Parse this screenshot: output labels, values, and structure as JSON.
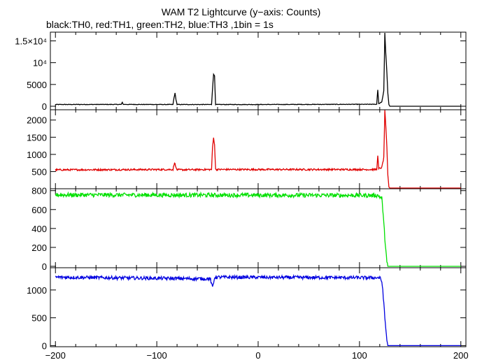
{
  "title": "WAM T2 Lightcurve (y−axis: Counts)",
  "subtitle": "black:TH0, red:TH1, green:TH2, blue:TH3 ,1bin = 1s",
  "chart_data": {
    "type": "line",
    "x_range": [
      -205,
      205
    ],
    "x_ticks": [
      -200,
      -100,
      0,
      100,
      200
    ],
    "x_tick_labels": [
      "−200",
      "−100",
      "0",
      "100",
      "200"
    ],
    "x_minor_step": 20,
    "panels": [
      {
        "name": "TH0",
        "color": "#000000",
        "ylim": [
          -800,
          17000
        ],
        "y_ticks": [
          0,
          5000,
          10000,
          15000
        ],
        "y_tick_labels": [
          "0",
          "5000",
          "10⁴",
          "1.5×10⁴"
        ],
        "series": {
          "baseline": 400,
          "noise": 60,
          "points": [
            [
              -200,
              400
            ],
            [
              -135,
              420
            ],
            [
              -134,
              900
            ],
            [
              -133,
              420
            ],
            [
              -84,
              400
            ],
            [
              -83,
              2000
            ],
            [
              -82,
              3000
            ],
            [
              -81,
              1500
            ],
            [
              -80,
              400
            ],
            [
              -46,
              400
            ],
            [
              -45,
              4000
            ],
            [
              -44,
              7300
            ],
            [
              -43,
              7000
            ],
            [
              -42,
              400
            ],
            [
              -5,
              400
            ],
            [
              117,
              450
            ],
            [
              118,
              3800
            ],
            [
              119,
              600
            ],
            [
              122,
              1000
            ],
            [
              124,
              3500
            ],
            [
              125,
              16800
            ],
            [
              126,
              12000
            ],
            [
              127,
              7800
            ],
            [
              128,
              3000
            ],
            [
              129,
              400
            ],
            [
              130,
              0
            ],
            [
              200,
              0
            ]
          ]
        }
      },
      {
        "name": "TH1",
        "color": "#e00000",
        "ylim": [
          0,
          2300
        ],
        "y_ticks": [
          500,
          1000,
          1500,
          2000
        ],
        "y_tick_labels": [
          "500",
          "1000",
          "1500",
          "2000"
        ],
        "series": {
          "baseline": 550,
          "noise": 25,
          "points": [
            [
              -200,
              550
            ],
            [
              -84,
              560
            ],
            [
              -83,
              700
            ],
            [
              -82,
              760
            ],
            [
              -81,
              600
            ],
            [
              -80,
              550
            ],
            [
              -46,
              560
            ],
            [
              -45,
              1200
            ],
            [
              -44,
              1480
            ],
            [
              -43,
              1300
            ],
            [
              -42,
              560
            ],
            [
              117,
              560
            ],
            [
              118,
              950
            ],
            [
              119,
              580
            ],
            [
              122,
              620
            ],
            [
              124,
              900
            ],
            [
              125,
              2300
            ],
            [
              126,
              1800
            ],
            [
              127,
              1200
            ],
            [
              128,
              400
            ],
            [
              129,
              50
            ],
            [
              130,
              20
            ],
            [
              200,
              20
            ]
          ]
        }
      },
      {
        "name": "TH2",
        "color": "#00e000",
        "ylim": [
          -15,
          820
        ],
        "y_ticks": [
          0,
          200,
          400,
          600,
          800
        ],
        "y_tick_labels": [
          "0",
          "200",
          "400",
          "600",
          "800"
        ],
        "series": {
          "baseline": 755,
          "noise": 22,
          "points": [
            [
              -200,
              755
            ],
            [
              118,
              750
            ],
            [
              120,
              735
            ],
            [
              122,
              720
            ],
            [
              123,
              600
            ],
            [
              124,
              450
            ],
            [
              125,
              300
            ],
            [
              126,
              180
            ],
            [
              127,
              40
            ],
            [
              128,
              0
            ],
            [
              200,
              0
            ]
          ]
        }
      },
      {
        "name": "TH3",
        "color": "#0000e0",
        "ylim": [
          -20,
          1400
        ],
        "y_ticks": [
          0,
          500,
          1000
        ],
        "y_tick_labels": [
          "0",
          "500",
          "1000"
        ],
        "series": {
          "baseline": 1230,
          "noise": 30,
          "points": [
            [
              -200,
              1230
            ],
            [
              -47,
              1200
            ],
            [
              -46,
              1100
            ],
            [
              -45,
              1050
            ],
            [
              -44,
              1120
            ],
            [
              -43,
              1230
            ],
            [
              118,
              1220
            ],
            [
              120,
              1220
            ],
            [
              122,
              1150
            ],
            [
              123,
              1000
            ],
            [
              124,
              750
            ],
            [
              125,
              500
            ],
            [
              126,
              300
            ],
            [
              127,
              100
            ],
            [
              128,
              0
            ],
            [
              200,
              0
            ]
          ]
        }
      }
    ]
  }
}
